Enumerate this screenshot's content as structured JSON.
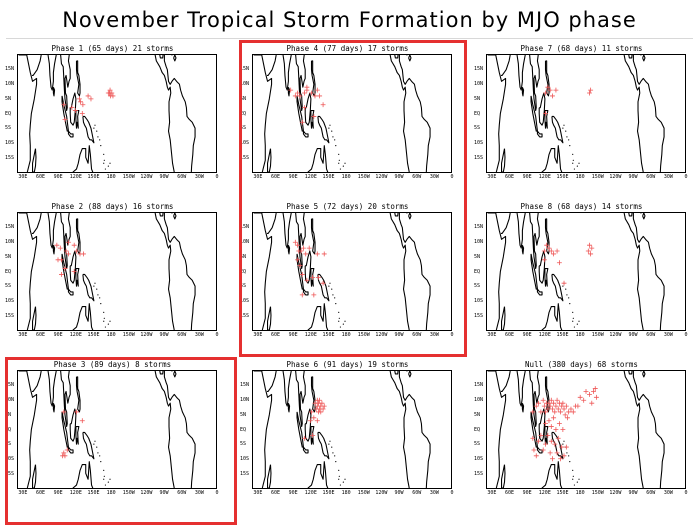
{
  "title": "November Tropical Storm Formation by MJO phase",
  "highlight_color": "#e53030",
  "marker_color": "#ee5555",
  "lat_ticks": [
    "15N",
    "10N",
    "5N",
    "EQ",
    "5S",
    "10S",
    "15S"
  ],
  "lon_ticks": [
    "30E",
    "60E",
    "90E",
    "120E",
    "150E",
    "180",
    "150W",
    "120W",
    "90W",
    "60W",
    "30W",
    "0"
  ],
  "panels": [
    {
      "key": "p1",
      "label": "Phase 1 (65 days) 21 storms",
      "highlighted": false,
      "storms": [
        [
          98,
          3
        ],
        [
          112,
          2
        ],
        [
          118,
          1
        ],
        [
          125,
          5
        ],
        [
          127,
          4
        ],
        [
          131,
          3
        ],
        [
          140,
          6
        ],
        [
          145,
          5
        ],
        [
          100,
          -2
        ],
        [
          130,
          0
        ],
        [
          175,
          7
        ],
        [
          177,
          7
        ],
        [
          179,
          6
        ],
        [
          181,
          7
        ],
        [
          183,
          6
        ],
        [
          178,
          8
        ]
      ]
    },
    {
      "key": "p4",
      "label": "Phase 4 (77 days) 17 storms",
      "highlighted": true,
      "storms": [
        [
          92,
          6
        ],
        [
          96,
          7
        ],
        [
          100,
          6
        ],
        [
          108,
          7
        ],
        [
          112,
          8
        ],
        [
          120,
          7
        ],
        [
          126,
          6
        ],
        [
          130,
          8
        ],
        [
          134,
          6
        ],
        [
          112,
          9
        ],
        [
          108,
          2
        ],
        [
          104,
          -3
        ],
        [
          124,
          -1
        ],
        [
          84,
          8
        ],
        [
          140,
          3
        ]
      ]
    },
    {
      "key": "p7",
      "label": "Phase 7 (68 days) 11 storms",
      "highlighted": false,
      "storms": [
        [
          124,
          9
        ],
        [
          128,
          8
        ],
        [
          120,
          7
        ],
        [
          132,
          6
        ],
        [
          138,
          8
        ],
        [
          196,
          7
        ],
        [
          198,
          8
        ],
        [
          120,
          0
        ]
      ]
    },
    {
      "key": "p2",
      "label": "Phase 2 (88 days) 16 storms",
      "highlighted": false,
      "storms": [
        [
          86,
          9
        ],
        [
          92,
          8
        ],
        [
          88,
          4
        ],
        [
          94,
          4
        ],
        [
          102,
          7
        ],
        [
          106,
          6
        ],
        [
          106,
          10
        ],
        [
          116,
          9
        ],
        [
          120,
          7
        ],
        [
          126,
          6
        ],
        [
          132,
          6
        ],
        [
          100,
          1
        ],
        [
          94,
          -1
        ],
        [
          116,
          0
        ]
      ]
    },
    {
      "key": "p5",
      "label": "Phase 5 (72 days) 20 storms",
      "highlighted": true,
      "storms": [
        [
          92,
          10
        ],
        [
          96,
          9
        ],
        [
          98,
          7
        ],
        [
          102,
          7
        ],
        [
          106,
          8
        ],
        [
          110,
          6
        ],
        [
          116,
          8
        ],
        [
          130,
          6
        ],
        [
          142,
          6
        ],
        [
          96,
          4
        ],
        [
          100,
          2
        ],
        [
          104,
          -1
        ],
        [
          112,
          -3
        ],
        [
          122,
          -2
        ],
        [
          124,
          -8
        ],
        [
          132,
          -2
        ],
        [
          140,
          -4
        ],
        [
          104,
          -8
        ]
      ]
    },
    {
      "key": "p8",
      "label": "Phase 8 (68 days) 14 storms",
      "highlighted": false,
      "storms": [
        [
          122,
          9
        ],
        [
          126,
          8
        ],
        [
          118,
          7
        ],
        [
          130,
          7
        ],
        [
          134,
          6
        ],
        [
          140,
          7
        ],
        [
          118,
          4
        ],
        [
          144,
          3
        ],
        [
          152,
          -4
        ],
        [
          196,
          9
        ],
        [
          194,
          7
        ],
        [
          198,
          6
        ],
        [
          200,
          8
        ]
      ]
    },
    {
      "key": "p3",
      "label": "Phase 3 (89 days) 8 storms",
      "highlighted": true,
      "storms": [
        [
          98,
          6
        ],
        [
          120,
          6
        ],
        [
          130,
          3
        ],
        [
          98,
          -8
        ],
        [
          100,
          -9
        ],
        [
          96,
          -9
        ],
        [
          104,
          -7
        ]
      ]
    },
    {
      "key": "p6",
      "label": "Phase 6 (91 days) 19 storms",
      "highlighted": false,
      "storms": [
        [
          128,
          7
        ],
        [
          130,
          8
        ],
        [
          132,
          9
        ],
        [
          134,
          7
        ],
        [
          136,
          8
        ],
        [
          132,
          6
        ],
        [
          130,
          10
        ],
        [
          126,
          9
        ],
        [
          138,
          9
        ],
        [
          140,
          7
        ],
        [
          142,
          8
        ],
        [
          134,
          10
        ],
        [
          136,
          6
        ],
        [
          120,
          6
        ],
        [
          124,
          4
        ],
        [
          118,
          3
        ],
        [
          130,
          3
        ],
        [
          122,
          -2
        ],
        [
          108,
          -3
        ]
      ]
    },
    {
      "key": "null",
      "label": "Null (380 days) 68 storms",
      "highlighted": false,
      "storms": [
        [
          98,
          6
        ],
        [
          104,
          8
        ],
        [
          108,
          9
        ],
        [
          112,
          6
        ],
        [
          116,
          10
        ],
        [
          118,
          8
        ],
        [
          120,
          6
        ],
        [
          122,
          9
        ],
        [
          124,
          7
        ],
        [
          126,
          9
        ],
        [
          128,
          8
        ],
        [
          130,
          10
        ],
        [
          132,
          7
        ],
        [
          134,
          9
        ],
        [
          136,
          6
        ],
        [
          138,
          8
        ],
        [
          140,
          10
        ],
        [
          142,
          7
        ],
        [
          144,
          9
        ],
        [
          146,
          6
        ],
        [
          148,
          8
        ],
        [
          150,
          9
        ],
        [
          152,
          7
        ],
        [
          154,
          5
        ],
        [
          156,
          8
        ],
        [
          158,
          4
        ],
        [
          160,
          6
        ],
        [
          164,
          7
        ],
        [
          168,
          6
        ],
        [
          172,
          8
        ],
        [
          176,
          8
        ],
        [
          180,
          11
        ],
        [
          186,
          10
        ],
        [
          196,
          12
        ],
        [
          200,
          9
        ],
        [
          203,
          13
        ],
        [
          208,
          11
        ],
        [
          206,
          14
        ],
        [
          190,
          13
        ],
        [
          120,
          2
        ],
        [
          126,
          3
        ],
        [
          130,
          1
        ],
        [
          134,
          4
        ],
        [
          138,
          0
        ],
        [
          144,
          2
        ],
        [
          150,
          0
        ],
        [
          124,
          -2
        ],
        [
          130,
          -4
        ],
        [
          136,
          -5
        ],
        [
          142,
          -3
        ],
        [
          148,
          -6
        ],
        [
          140,
          -8
        ],
        [
          152,
          -9
        ],
        [
          156,
          -6
        ],
        [
          120,
          -5
        ],
        [
          116,
          -7
        ],
        [
          108,
          -4
        ],
        [
          112,
          -2
        ],
        [
          104,
          -9
        ],
        [
          100,
          -7
        ],
        [
          98,
          -3
        ],
        [
          132,
          -10
        ],
        [
          128,
          -8
        ],
        [
          146,
          -10
        ]
      ]
    }
  ]
}
